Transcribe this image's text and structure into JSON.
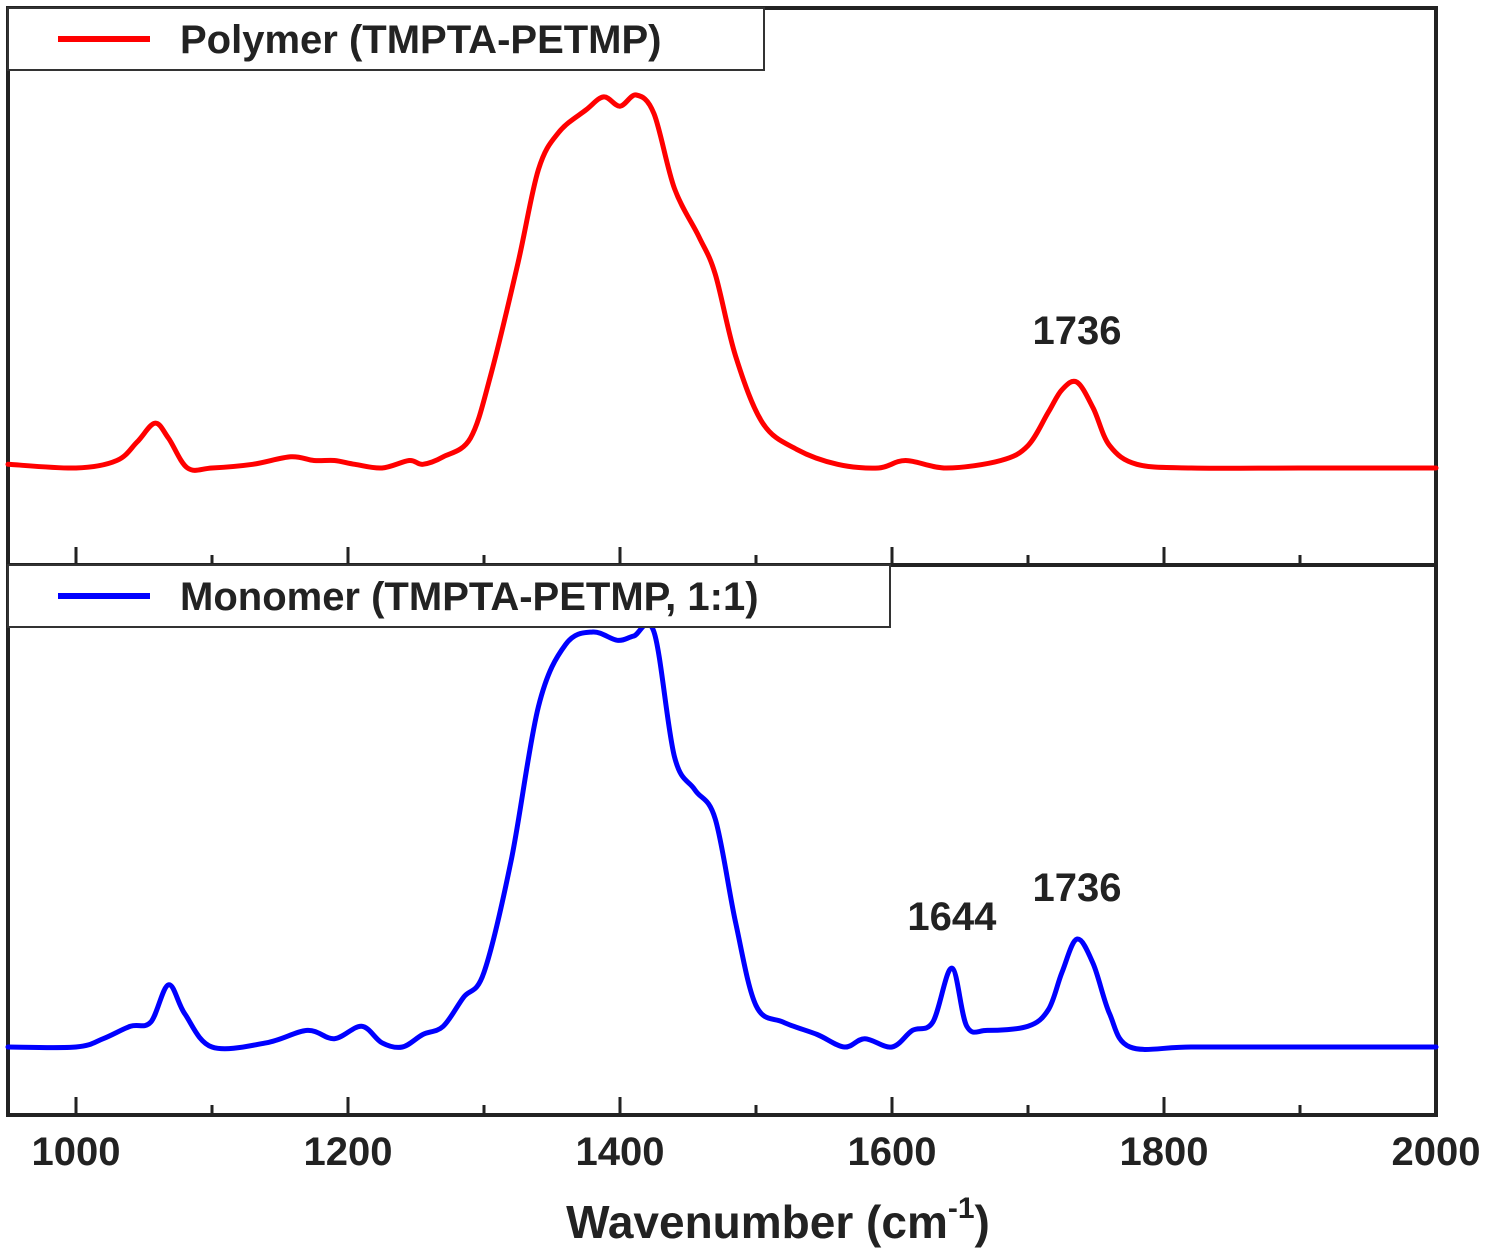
{
  "x_axis": {
    "label_main": "Wavenumber (cm",
    "label_sup": "-1",
    "label_close": ")"
  },
  "chart_data": [
    {
      "type": "line",
      "xlim": [
        950,
        2000
      ],
      "x_ticks_major": [
        1000,
        1200,
        1400,
        1600,
        1800,
        2000
      ],
      "x_ticks_minor": [
        1100,
        1300,
        1500,
        1700,
        1900
      ],
      "x_tick_labels": [],
      "ylim": [
        0,
        1
      ],
      "y_axis_visible": false,
      "grid": false,
      "legend_position": "top-left",
      "series": [
        {
          "name": "Polymer (TMPTA-PETMP)",
          "color": "#ff0000",
          "x": [
            950,
            1000,
            1030,
            1045,
            1058,
            1068,
            1082,
            1100,
            1130,
            1158,
            1175,
            1190,
            1205,
            1225,
            1245,
            1255,
            1270,
            1290,
            1305,
            1325,
            1340,
            1355,
            1375,
            1388,
            1400,
            1412,
            1425,
            1440,
            1458,
            1470,
            1485,
            1505,
            1530,
            1560,
            1590,
            1610,
            1640,
            1680,
            1700,
            1715,
            1725,
            1736,
            1748,
            1760,
            1780,
            1820,
            1900,
            2000
          ],
          "y": [
            0.01,
            0.0,
            0.02,
            0.07,
            0.12,
            0.08,
            0.0,
            0.0,
            0.01,
            0.03,
            0.02,
            0.02,
            0.01,
            0.0,
            0.02,
            0.01,
            0.03,
            0.08,
            0.25,
            0.55,
            0.8,
            0.9,
            0.96,
            0.995,
            0.97,
            1.0,
            0.95,
            0.75,
            0.62,
            0.52,
            0.3,
            0.12,
            0.05,
            0.01,
            0.0,
            0.02,
            0.0,
            0.02,
            0.06,
            0.15,
            0.21,
            0.23,
            0.16,
            0.06,
            0.01,
            0.0,
            0.0,
            0.0
          ]
        }
      ],
      "annotations": [
        {
          "text": "1736",
          "x": 1736,
          "y": 0.23
        }
      ]
    },
    {
      "type": "line",
      "xlim": [
        950,
        2000
      ],
      "x_ticks_major": [
        1000,
        1200,
        1400,
        1600,
        1800,
        2000
      ],
      "x_ticks_minor": [
        1100,
        1300,
        1500,
        1700,
        1900
      ],
      "x_tick_labels": [
        "1000",
        "1200",
        "1400",
        "1600",
        "1800",
        "2000"
      ],
      "ylim": [
        0,
        1
      ],
      "y_axis_visible": false,
      "grid": false,
      "legend_position": "top-left",
      "series": [
        {
          "name": "Monomer (TMPTA-PETMP, 1:1)",
          "color": "#0000ff",
          "x": [
            950,
            1000,
            1020,
            1040,
            1055,
            1068,
            1080,
            1100,
            1140,
            1170,
            1190,
            1210,
            1225,
            1240,
            1255,
            1270,
            1285,
            1300,
            1320,
            1340,
            1360,
            1380,
            1398,
            1410,
            1425,
            1440,
            1455,
            1470,
            1485,
            1500,
            1520,
            1545,
            1565,
            1580,
            1600,
            1615,
            1630,
            1644,
            1655,
            1670,
            1700,
            1715,
            1725,
            1736,
            1748,
            1760,
            1775,
            1820,
            1900,
            2000
          ],
          "y": [
            0.0,
            0.0,
            0.02,
            0.05,
            0.06,
            0.15,
            0.08,
            0.0,
            0.01,
            0.04,
            0.02,
            0.05,
            0.01,
            0.0,
            0.03,
            0.05,
            0.12,
            0.18,
            0.45,
            0.82,
            0.97,
            1.0,
            0.98,
            0.99,
            1.0,
            0.7,
            0.62,
            0.55,
            0.3,
            0.1,
            0.06,
            0.03,
            0.0,
            0.02,
            0.0,
            0.04,
            0.06,
            0.19,
            0.05,
            0.04,
            0.05,
            0.09,
            0.18,
            0.26,
            0.2,
            0.08,
            0.0,
            0.0,
            0.0,
            0.0
          ]
        }
      ],
      "annotations": [
        {
          "text": "1644",
          "x": 1644,
          "y": 0.19
        },
        {
          "text": "1736",
          "x": 1736,
          "y": 0.26
        }
      ]
    }
  ]
}
